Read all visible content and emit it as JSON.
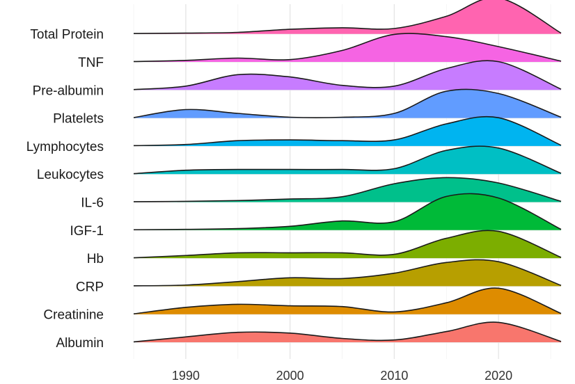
{
  "chart_data": {
    "type": "area",
    "subtype": "ridgeline",
    "title": "",
    "xlabel": "",
    "ylabel": "",
    "xlim": [
      1985,
      2026
    ],
    "x_ticks": [
      1990,
      2000,
      2010,
      2020
    ],
    "grid": true,
    "legend": "none",
    "x": [
      1985,
      1990,
      1995,
      2000,
      2005,
      2010,
      2015,
      2020,
      2026
    ],
    "series": [
      {
        "name": "Albumin",
        "color": "#F8766D",
        "values": [
          0.01,
          0.14,
          0.26,
          0.24,
          0.1,
          0.06,
          0.28,
          0.52,
          0.02
        ]
      },
      {
        "name": "Creatinine",
        "color": "#DE8C00",
        "values": [
          0.01,
          0.18,
          0.26,
          0.22,
          0.2,
          0.06,
          0.3,
          0.68,
          0.02
        ]
      },
      {
        "name": "CRP",
        "color": "#B79F00",
        "values": [
          0.01,
          0.03,
          0.12,
          0.22,
          0.2,
          0.34,
          0.62,
          0.64,
          0.02
        ]
      },
      {
        "name": "Hb",
        "color": "#7CAE00",
        "values": [
          0.01,
          0.07,
          0.14,
          0.14,
          0.14,
          0.1,
          0.52,
          0.7,
          0.02
        ]
      },
      {
        "name": "IGF-1",
        "color": "#00BA38",
        "values": [
          0.01,
          0.02,
          0.04,
          0.1,
          0.24,
          0.22,
          0.88,
          0.84,
          0.02
        ]
      },
      {
        "name": "IL-6",
        "color": "#00C08B",
        "values": [
          0.01,
          0.02,
          0.04,
          0.08,
          0.14,
          0.48,
          0.64,
          0.5,
          0.02
        ]
      },
      {
        "name": "Leukocytes",
        "color": "#00BFC4",
        "values": [
          0.01,
          0.1,
          0.12,
          0.12,
          0.12,
          0.14,
          0.62,
          0.68,
          0.02
        ]
      },
      {
        "name": "Lymphocytes",
        "color": "#00B4F0",
        "values": [
          0.01,
          0.04,
          0.14,
          0.16,
          0.14,
          0.16,
          0.58,
          0.74,
          0.02
        ]
      },
      {
        "name": "Platelets",
        "color": "#619CFF",
        "values": [
          0.01,
          0.22,
          0.12,
          0.02,
          0.02,
          0.12,
          0.7,
          0.64,
          0.02
        ]
      },
      {
        "name": "Pre-albumin",
        "color": "#C77CFF",
        "values": [
          0.01,
          0.1,
          0.4,
          0.34,
          0.12,
          0.1,
          0.56,
          0.74,
          0.02
        ]
      },
      {
        "name": "TNF",
        "color": "#F564E3",
        "values": [
          0.01,
          0.04,
          0.1,
          0.06,
          0.3,
          0.72,
          0.66,
          0.4,
          0.02
        ]
      },
      {
        "name": "Total Protein",
        "color": "#FF64B0",
        "values": [
          0.01,
          0.02,
          0.04,
          0.12,
          0.16,
          0.14,
          0.46,
          0.94,
          0.02
        ]
      }
    ]
  }
}
